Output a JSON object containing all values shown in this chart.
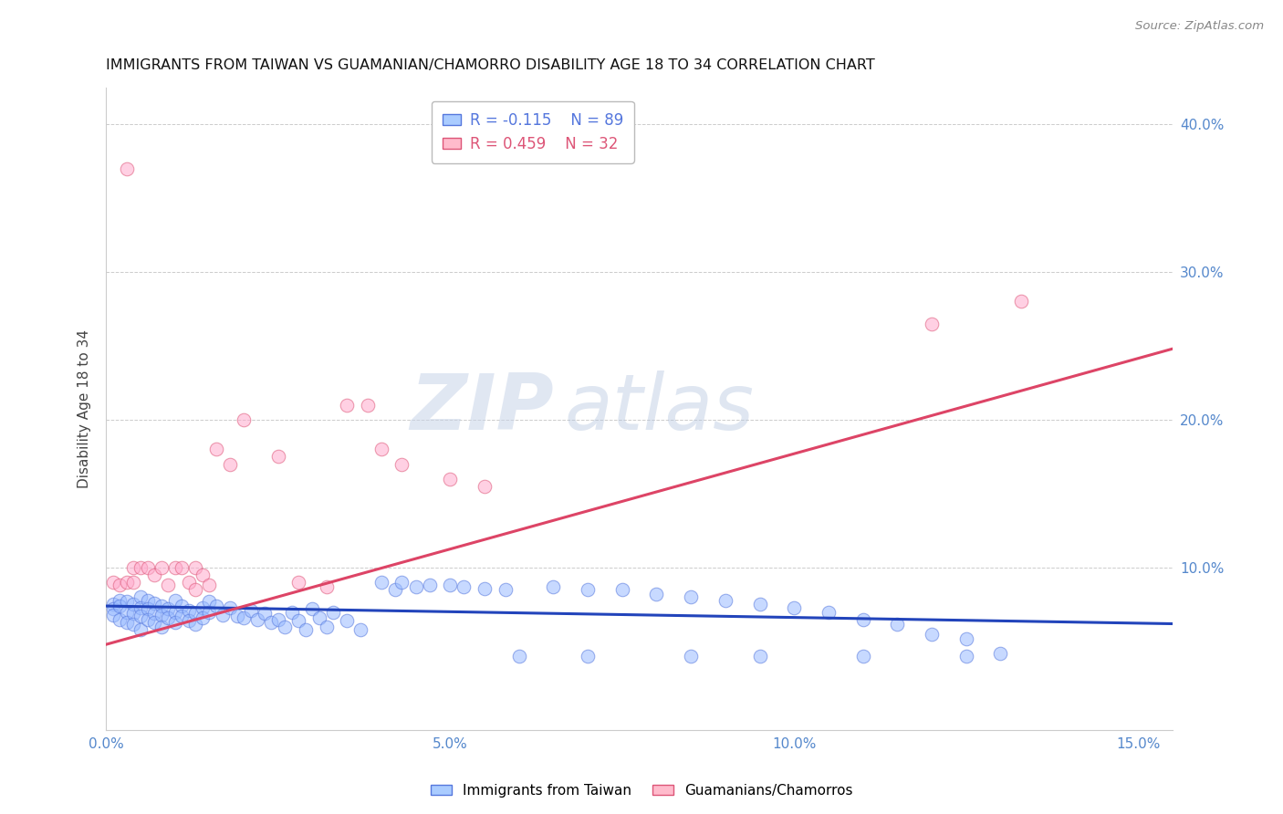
{
  "title": "IMMIGRANTS FROM TAIWAN VS GUAMANIAN/CHAMORRO DISABILITY AGE 18 TO 34 CORRELATION CHART",
  "source": "Source: ZipAtlas.com",
  "ylabel": "Disability Age 18 to 34",
  "xlim": [
    0.0,
    0.155
  ],
  "ylim": [
    -0.01,
    0.425
  ],
  "xticks": [
    0.0,
    0.05,
    0.1,
    0.15
  ],
  "yticks": [
    0.1,
    0.2,
    0.3,
    0.4
  ],
  "ytick_labels": [
    "10.0%",
    "20.0%",
    "30.0%",
    "40.0%"
  ],
  "xtick_labels": [
    "0.0%",
    "5.0%",
    "10.0%",
    "15.0%"
  ],
  "blue_color": "#99bbff",
  "blue_edge_color": "#5577dd",
  "pink_color": "#ffaacc",
  "pink_edge_color": "#dd5577",
  "blue_line_color": "#2244bb",
  "pink_line_color": "#dd4466",
  "blue_R": -0.115,
  "blue_N": 89,
  "pink_R": 0.459,
  "pink_N": 32,
  "blue_label": "Immigrants from Taiwan",
  "pink_label": "Guamanians/Chamorros",
  "watermark_zip": "ZIP",
  "watermark_atlas": "atlas",
  "tick_color": "#5588cc",
  "grid_color": "#cccccc",
  "background_color": "#ffffff",
  "blue_line_x": [
    0.0,
    0.155
  ],
  "blue_line_y": [
    0.074,
    0.062
  ],
  "pink_line_x": [
    0.0,
    0.155
  ],
  "pink_line_y": [
    0.048,
    0.248
  ],
  "blue_scatter_x": [
    0.001,
    0.001,
    0.001,
    0.002,
    0.002,
    0.002,
    0.003,
    0.003,
    0.003,
    0.004,
    0.004,
    0.004,
    0.005,
    0.005,
    0.005,
    0.005,
    0.006,
    0.006,
    0.006,
    0.007,
    0.007,
    0.007,
    0.008,
    0.008,
    0.008,
    0.009,
    0.009,
    0.01,
    0.01,
    0.01,
    0.011,
    0.011,
    0.012,
    0.012,
    0.013,
    0.013,
    0.014,
    0.014,
    0.015,
    0.015,
    0.016,
    0.017,
    0.018,
    0.019,
    0.02,
    0.021,
    0.022,
    0.023,
    0.024,
    0.025,
    0.026,
    0.027,
    0.028,
    0.029,
    0.03,
    0.031,
    0.032,
    0.033,
    0.035,
    0.037,
    0.04,
    0.042,
    0.043,
    0.045,
    0.047,
    0.05,
    0.052,
    0.055,
    0.058,
    0.065,
    0.07,
    0.075,
    0.08,
    0.085,
    0.09,
    0.095,
    0.1,
    0.105,
    0.11,
    0.115,
    0.12,
    0.125,
    0.13,
    0.11,
    0.125,
    0.095,
    0.085,
    0.07,
    0.06
  ],
  "blue_scatter_y": [
    0.075,
    0.072,
    0.068,
    0.078,
    0.074,
    0.065,
    0.077,
    0.07,
    0.063,
    0.075,
    0.069,
    0.062,
    0.08,
    0.073,
    0.067,
    0.058,
    0.078,
    0.072,
    0.065,
    0.076,
    0.069,
    0.063,
    0.074,
    0.068,
    0.06,
    0.072,
    0.066,
    0.078,
    0.07,
    0.063,
    0.074,
    0.067,
    0.071,
    0.064,
    0.069,
    0.062,
    0.073,
    0.066,
    0.077,
    0.07,
    0.074,
    0.068,
    0.073,
    0.067,
    0.066,
    0.071,
    0.065,
    0.069,
    0.063,
    0.065,
    0.06,
    0.07,
    0.064,
    0.058,
    0.072,
    0.066,
    0.06,
    0.07,
    0.064,
    0.058,
    0.09,
    0.085,
    0.09,
    0.087,
    0.088,
    0.088,
    0.087,
    0.086,
    0.085,
    0.087,
    0.085,
    0.085,
    0.082,
    0.08,
    0.078,
    0.075,
    0.073,
    0.07,
    0.065,
    0.062,
    0.055,
    0.052,
    0.042,
    0.04,
    0.04,
    0.04,
    0.04,
    0.04,
    0.04
  ],
  "pink_scatter_x": [
    0.001,
    0.002,
    0.003,
    0.003,
    0.004,
    0.004,
    0.005,
    0.006,
    0.007,
    0.008,
    0.009,
    0.01,
    0.011,
    0.012,
    0.013,
    0.013,
    0.014,
    0.015,
    0.016,
    0.018,
    0.02,
    0.025,
    0.028,
    0.032,
    0.035,
    0.038,
    0.04,
    0.043,
    0.05,
    0.055,
    0.12,
    0.133
  ],
  "pink_scatter_y": [
    0.09,
    0.088,
    0.37,
    0.09,
    0.1,
    0.09,
    0.1,
    0.1,
    0.095,
    0.1,
    0.088,
    0.1,
    0.1,
    0.09,
    0.1,
    0.085,
    0.095,
    0.088,
    0.18,
    0.17,
    0.2,
    0.175,
    0.09,
    0.087,
    0.21,
    0.21,
    0.18,
    0.17,
    0.16,
    0.155,
    0.265,
    0.28
  ]
}
